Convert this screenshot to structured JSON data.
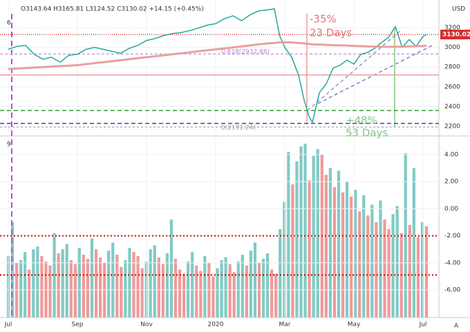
{
  "header": {
    "ohlc": "O3143.64 H3165.81 L3124.52 C3130.02 +14.15 (+0.45%)",
    "currency": "USD",
    "price_panel": "6",
    "indicator_panel": "9",
    "corner": "A"
  },
  "chart_data": [
    {
      "type": "line",
      "x": [
        0,
        0.25,
        0.5,
        0.75,
        1.0,
        1.25,
        1.5,
        1.75,
        2.0,
        2.25,
        2.5,
        2.75,
        3.0,
        3.25,
        3.5,
        3.75,
        4.0,
        4.25,
        4.5,
        4.75,
        5.0,
        5.25,
        5.5,
        5.75,
        6.0,
        6.25,
        6.5,
        6.75,
        7.0,
        7.25,
        7.5,
        7.7,
        7.85,
        8.0,
        8.2,
        8.4,
        8.55,
        8.7,
        8.8,
        9.0,
        9.2,
        9.4,
        9.6,
        9.8,
        10.0,
        10.2,
        10.4,
        10.6,
        10.8,
        11.0,
        11.2,
        11.4,
        11.6,
        11.8,
        12.0,
        12.1
      ],
      "series": [
        {
          "color": "#26a69a",
          "values": [
            2980,
            3010,
            3020,
            2930,
            2880,
            2900,
            2850,
            2920,
            2930,
            2980,
            3000,
            2980,
            2960,
            2940,
            2990,
            3020,
            3070,
            3090,
            3120,
            3140,
            3150,
            3170,
            3195,
            3225,
            3240,
            3290,
            3320,
            3270,
            3330,
            3370,
            3380,
            3390,
            3120,
            3000,
            2900,
            2720,
            2480,
            2300,
            2240,
            2540,
            2630,
            2790,
            2820,
            2870,
            2830,
            2930,
            2950,
            2990,
            3050,
            3100,
            3210,
            3000,
            3080,
            3010,
            3110,
            3130
          ]
        },
        {
          "color": "#e8a0a0",
          "values": [
            2780,
            2785,
            2790,
            2795,
            2800,
            2805,
            2810,
            2815,
            2820,
            2830,
            2840,
            2850,
            2860,
            2870,
            2880,
            2890,
            2900,
            2910,
            2920,
            2930,
            2940,
            2950,
            2960,
            2970,
            2980,
            2990,
            3000,
            3010,
            3020,
            3030,
            3040,
            3045,
            3050,
            3052,
            3050,
            3045,
            3040,
            3035,
            3030,
            3028,
            3025,
            3022,
            3020,
            3018,
            3015,
            3012,
            3010,
            3008,
            3006,
            3005,
            3006,
            3008,
            3010,
            3012,
            3014,
            3016
          ]
        }
      ],
      "hlines": [
        {
          "value": 3130.02,
          "color": "#d32f2f",
          "dash": "1,2"
        },
        {
          "value": 2932.88,
          "color": "#c9a3e0",
          "dash": "4,3"
        },
        {
          "value": 2720,
          "color": "#ef9a9a",
          "dash": ""
        },
        {
          "value": 2360,
          "color": "#2e9e2e",
          "dash": "6,4"
        },
        {
          "value": 2230,
          "color": "#5e35b1",
          "dash": "6,4"
        },
        {
          "value": 2191.24,
          "color": "#bdbdbd",
          "dash": "3,3"
        }
      ],
      "annotations": [
        "-35%",
        "23 Days",
        "+48%",
        "53 Days",
        "0.618(2932.88)",
        "0(2191.24)"
      ],
      "last_price": 3130.02,
      "xlim": [
        -0.24,
        12.46
      ],
      "xticks": [
        {
          "value": 0,
          "label": "Jul"
        },
        {
          "value": 2,
          "label": "Sep"
        },
        {
          "value": 4,
          "label": "Nov"
        },
        {
          "value": 6,
          "label": "2020"
        },
        {
          "value": 8,
          "label": "Mar"
        },
        {
          "value": 10,
          "label": "May"
        },
        {
          "value": 12,
          "label": "Jul"
        }
      ],
      "ylim": [
        2116,
        3480
      ],
      "yticks": [
        2200,
        2400,
        2600,
        2800,
        3000,
        3200
      ],
      "grid": true
    },
    {
      "type": "bar",
      "up_color": "#80cbc4",
      "down_color": "#ef9a9a",
      "values": [
        -3.5,
        -1,
        -4,
        -3.8,
        -3.2,
        -4.5,
        -3,
        -2.8,
        -3.5,
        -3.9,
        -4.2,
        -1.8,
        -3.3,
        -3,
        -2.6,
        -3.8,
        -4.1,
        -2.9,
        -3.4,
        -3.7,
        -2.2,
        -3,
        -3.6,
        -4,
        -3.1,
        -2.5,
        -3.4,
        -4.3,
        -3.8,
        -2.9,
        -3.2,
        -3.5,
        -4.4,
        -3.9,
        -3,
        -2.7,
        -3.6,
        -4.1,
        -3.3,
        -0.8,
        -3.7,
        -4.5,
        -4.8,
        -3.9,
        -3.2,
        -4.2,
        -4.6,
        -3.5,
        -4,
        -5,
        -4.4,
        -3.8,
        -3.6,
        -4.1,
        -4.7,
        -3.9,
        -3.4,
        -4.2,
        -3.1,
        -2.5,
        -4,
        -3.7,
        -3.3,
        -4.5,
        -4.8,
        -1.5,
        0.5,
        4.2,
        1.8,
        3.5,
        4.6,
        4.8,
        2.1,
        3.9,
        4.4,
        4.0,
        2.5,
        3.0,
        1.6,
        2.8,
        1.2,
        2.0,
        0.9,
        1.4,
        -0.2,
        1.0,
        -0.5,
        0.3,
        -1.0,
        0.6,
        -0.8,
        -1.5,
        -0.4,
        0.2,
        -1.8,
        4.1,
        -1.2,
        3.0,
        -2.1,
        -1.0,
        -1.3
      ],
      "hlines": [
        {
          "value": -2,
          "color": "#d50000",
          "dash": "2,3"
        },
        {
          "value": -4.9,
          "color": "#d50000",
          "dash": "2,3"
        }
      ],
      "ylim": [
        -8.04,
        5.22
      ],
      "yticks": [
        {
          "value": 4,
          "label": "4.00"
        },
        {
          "value": 2,
          "label": "2.00"
        },
        {
          "value": 0,
          "label": "0.00"
        },
        {
          "value": -2,
          "label": "-2.00"
        },
        {
          "value": -4,
          "label": "-4.00"
        },
        {
          "value": -6,
          "label": "-6.00"
        }
      ],
      "grid": true
    }
  ]
}
